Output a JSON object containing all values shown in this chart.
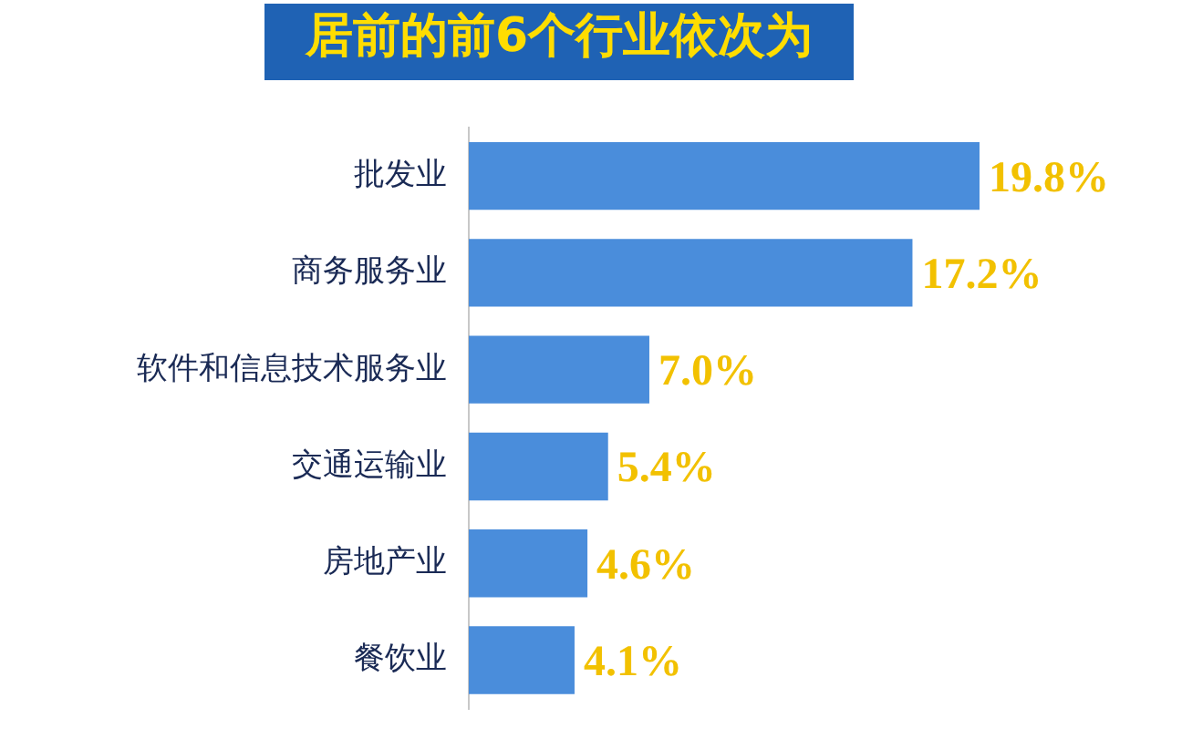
{
  "chart_data": {
    "type": "bar",
    "orientation": "horizontal",
    "title": "居前的前6个行业依次为",
    "categories": [
      "批发业",
      "商务服务业",
      "软件和信息技术服务业",
      "交通运输业",
      "房地产业",
      "餐饮业"
    ],
    "values": [
      19.8,
      17.2,
      7.0,
      5.4,
      4.6,
      4.1
    ],
    "value_labels": [
      "19.8%",
      "17.2%",
      "7.0%",
      "5.4%",
      "4.6%",
      "4.1%"
    ],
    "color": "#4a8ddb",
    "legend": false
  }
}
